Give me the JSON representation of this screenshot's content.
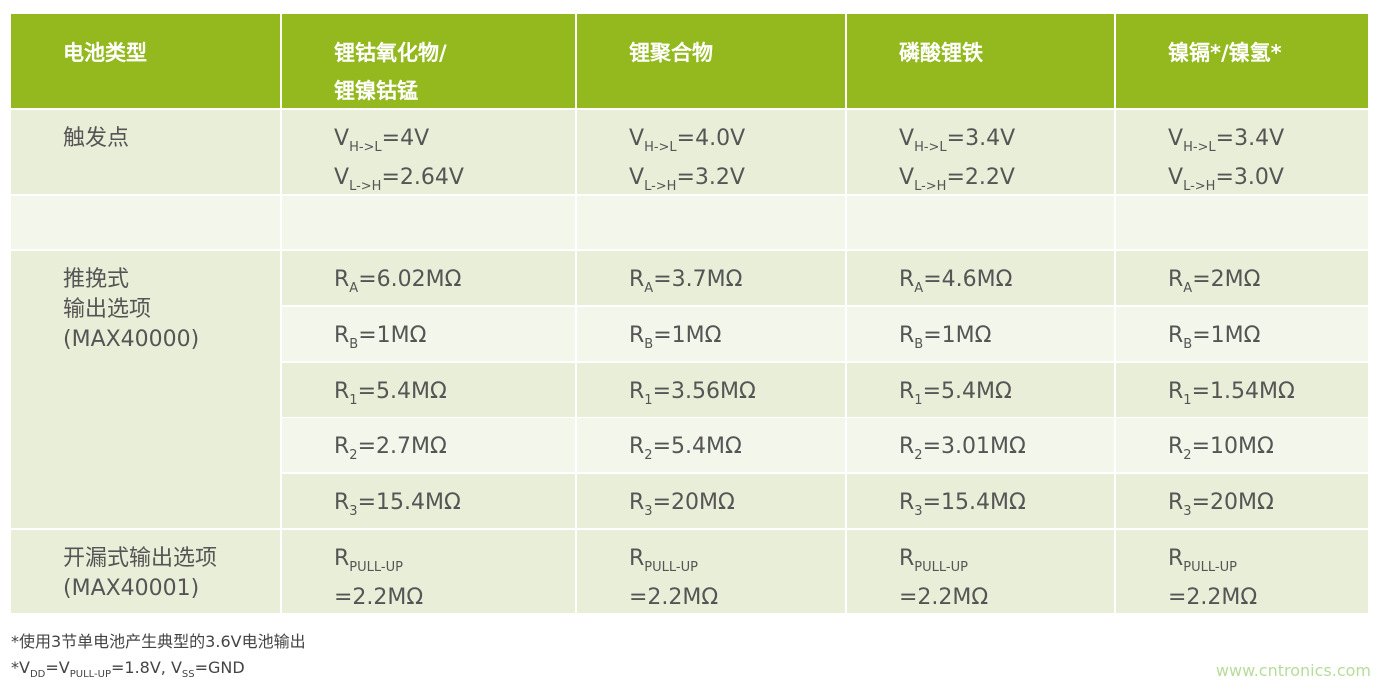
{
  "header": [
    "电池类型",
    "锂钴氧化物/\n锂镍钴锰",
    "锂聚合物",
    "磷酸锂铁",
    "镍镉*/镍氢*"
  ],
  "trigger": {
    "label": "触发点",
    "values": [
      {
        "h2l": "=4V",
        "l2h": "=2.64V"
      },
      {
        "h2l": "=4.0V",
        "l2h": "=3.2V"
      },
      {
        "h2l": "=3.4V",
        "l2h": "=2.2V"
      },
      {
        "h2l": "=3.4V",
        "l2h": "=3.0V"
      }
    ],
    "sub_h2l": "H->L",
    "sub_l2h": "L->H",
    "sym": "V"
  },
  "push_pull": {
    "label_line1": "推挽式",
    "label_line2": "输出选项",
    "label_line3": "(MAX40000)",
    "rows": [
      {
        "sym": "R",
        "sub": "A",
        "values": [
          "=6.02MΩ",
          "=3.7MΩ",
          "=4.6MΩ",
          "=2MΩ"
        ]
      },
      {
        "sym": "R",
        "sub": "B",
        "values": [
          "=1MΩ",
          "=1MΩ",
          "=1MΩ",
          "=1MΩ"
        ]
      },
      {
        "sym": "R",
        "sub": "1",
        "values": [
          "=5.4MΩ",
          "=3.56MΩ",
          "=5.4MΩ",
          "=1.54MΩ"
        ]
      },
      {
        "sym": "R",
        "sub": "2",
        "values": [
          "=2.7MΩ",
          "=5.4MΩ",
          "=3.01MΩ",
          "=10MΩ"
        ]
      },
      {
        "sym": "R",
        "sub": "3",
        "values": [
          "=15.4MΩ",
          "=20MΩ",
          "=15.4MΩ",
          "=20MΩ"
        ]
      }
    ]
  },
  "open_drain": {
    "label_line1": "开漏式输出选项",
    "label_line2": "(MAX40001)",
    "sym": "R",
    "sub": "PULL-UP",
    "values": [
      "=2.2MΩ",
      "=2.2MΩ",
      "=2.2MΩ",
      "=2.2MΩ"
    ]
  },
  "footnotes": {
    "note1": "*使用3节单电池产生典型的3.6V电池输出",
    "note2_parts": [
      "*V",
      "DD",
      "=V",
      "PULL-UP",
      "=1.8V, V",
      "SS",
      "=GND"
    ]
  },
  "watermark": "www.cntronics.com",
  "colors": {
    "header": "#93b91f",
    "row_dark": "#e9eed8",
    "row_light": "#f3f6ea"
  }
}
